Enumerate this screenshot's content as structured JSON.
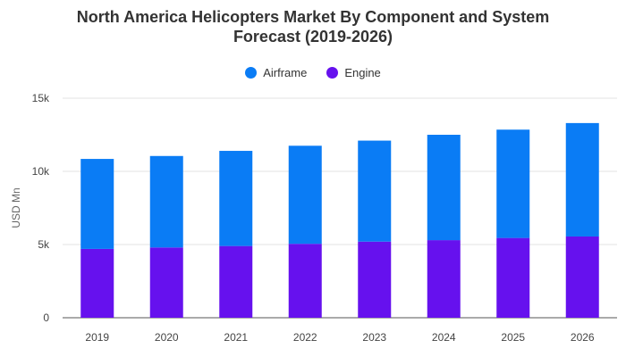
{
  "chart_data": {
    "type": "bar",
    "stacked": true,
    "title_line1": "North America Helicopters Market By Component and System",
    "title_line2": "Forecast (2019-2026)",
    "xlabel": "",
    "ylabel": "USD Mn",
    "ylim": [
      0,
      15000
    ],
    "y_ticks": [
      0,
      5000,
      10000,
      15000
    ],
    "y_tick_labels": [
      "0",
      "5k",
      "10k",
      "15k"
    ],
    "grid": true,
    "legend_position": "top",
    "categories": [
      "2019",
      "2020",
      "2021",
      "2022",
      "2023",
      "2024",
      "2025",
      "2026"
    ],
    "series": [
      {
        "name": "Engine",
        "color": "#6611ee",
        "values": [
          4700,
          4800,
          4900,
          5050,
          5200,
          5300,
          5450,
          5550
        ]
      },
      {
        "name": "Airframe",
        "color": "#0a7cf5",
        "values": [
          6150,
          6250,
          6500,
          6700,
          6900,
          7200,
          7400,
          7750
        ]
      }
    ],
    "legend": [
      {
        "name": "Airframe",
        "color": "#0a7cf5"
      },
      {
        "name": "Engine",
        "color": "#6611ee"
      }
    ]
  }
}
